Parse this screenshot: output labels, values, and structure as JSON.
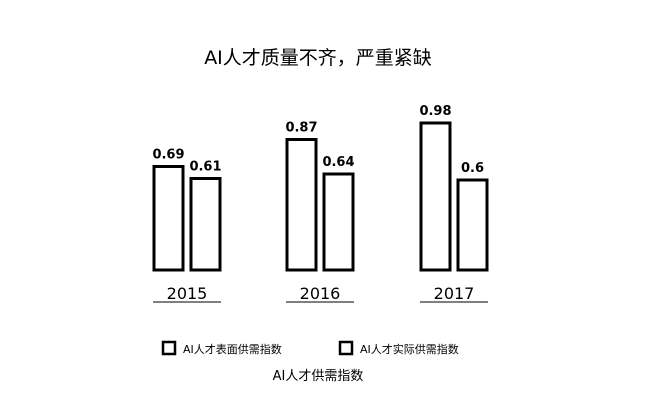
{
  "chart_data": {
    "type": "bar",
    "title": "AI人才质量不齐，严重紧缺",
    "categories": [
      "2015",
      "2016",
      "2017"
    ],
    "series": [
      {
        "name": "AI人才表面供需指数",
        "values": [
          0.69,
          0.87,
          0.98
        ]
      },
      {
        "name": "AI人才实际供需指数",
        "values": [
          0.61,
          0.64,
          0.6
        ]
      }
    ],
    "value_labels": [
      [
        "0.69",
        "0.61"
      ],
      [
        "0.87",
        "0.64"
      ],
      [
        "0.98",
        "0.6"
      ]
    ],
    "xlabel": "AI人才供需指数",
    "ylabel": "",
    "ylim": [
      0,
      1
    ],
    "grid": false,
    "legend_position": "bottom",
    "colors": {
      "bar_fill": "#ffffff",
      "bar_stroke": "#000000",
      "text": "#000000"
    }
  }
}
